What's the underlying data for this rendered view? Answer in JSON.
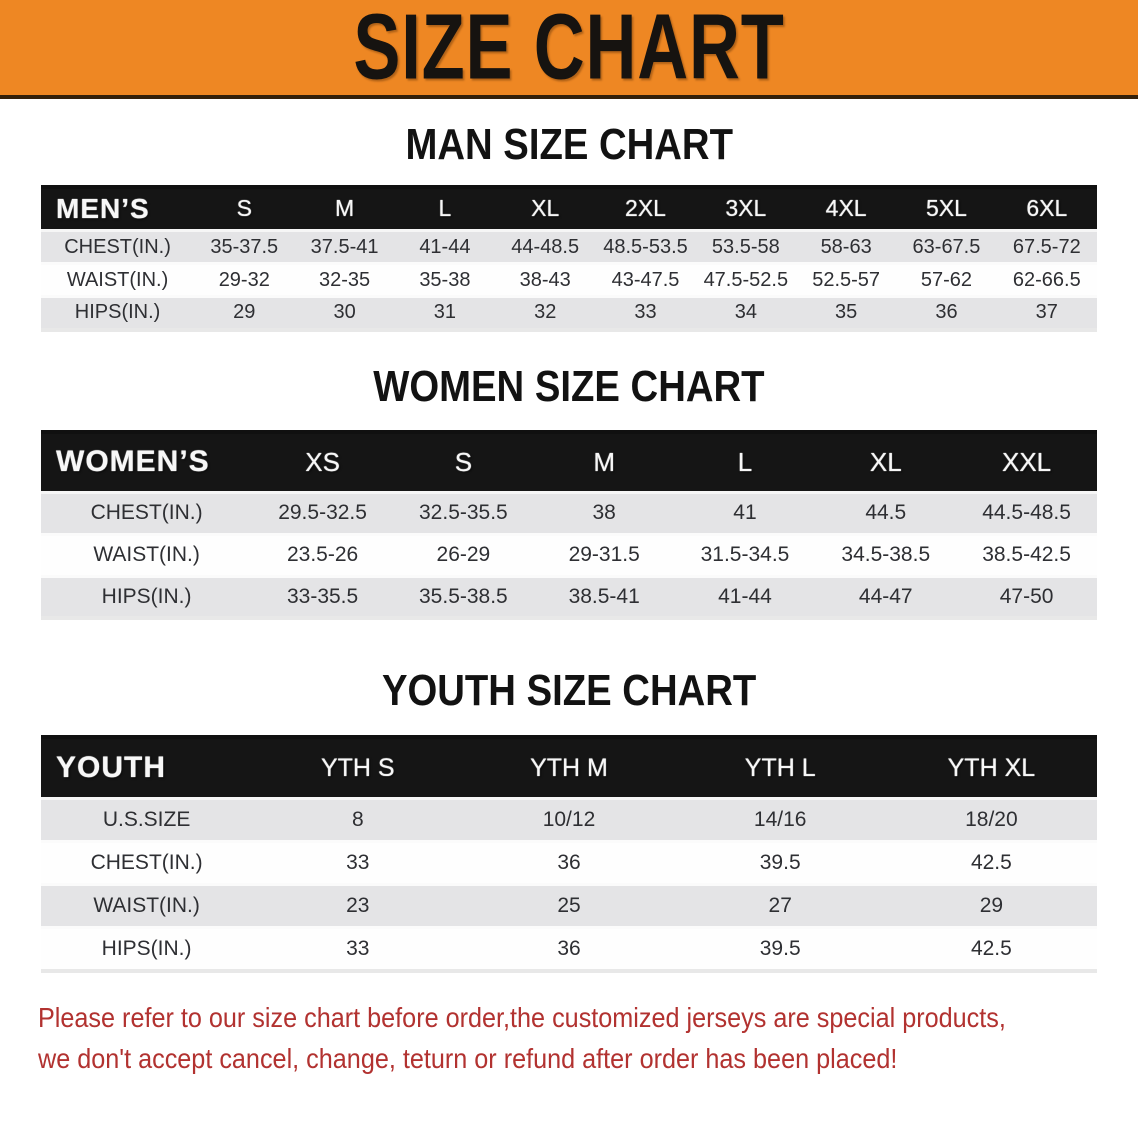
{
  "banner": {
    "title": "SIZE CHART"
  },
  "sections": [
    {
      "heading": "MAN SIZE CHART",
      "table": {
        "header_label": "MEN’S",
        "columns": [
          "S",
          "M",
          "L",
          "XL",
          "2XL",
          "3XL",
          "4XL",
          "5XL",
          "6XL"
        ],
        "rows": [
          {
            "label": "CHEST(IN.)",
            "values": [
              "35-37.5",
              "37.5-41",
              "41-44",
              "44-48.5",
              "48.5-53.5",
              "53.5-58",
              "58-63",
              "63-67.5",
              "67.5-72"
            ]
          },
          {
            "label": "WAIST(IN.)",
            "values": [
              "29-32",
              "32-35",
              "35-38",
              "38-43",
              "43-47.5",
              "47.5-52.5",
              "52.5-57",
              "57-62",
              "62-66.5"
            ]
          },
          {
            "label": "HIPS(IN.)",
            "values": [
              "29",
              "30",
              "31",
              "32",
              "33",
              "34",
              "35",
              "36",
              "37"
            ]
          }
        ]
      }
    },
    {
      "heading": "WOMEN SIZE CHART",
      "table": {
        "header_label": "WOMEN’S",
        "columns": [
          "XS",
          "S",
          "M",
          "L",
          "XL",
          "XXL"
        ],
        "rows": [
          {
            "label": "CHEST(IN.)",
            "values": [
              "29.5-32.5",
              "32.5-35.5",
              "38",
              "41",
              "44.5",
              "44.5-48.5"
            ]
          },
          {
            "label": "WAIST(IN.)",
            "values": [
              "23.5-26",
              "26-29",
              "29-31.5",
              "31.5-34.5",
              "34.5-38.5",
              "38.5-42.5"
            ]
          },
          {
            "label": "HIPS(IN.)",
            "values": [
              "33-35.5",
              "35.5-38.5",
              "38.5-41",
              "41-44",
              "44-47",
              "47-50"
            ]
          }
        ]
      }
    },
    {
      "heading": "YOUTH SIZE CHART",
      "table": {
        "header_label": "YOUTH",
        "columns": [
          "YTH S",
          "YTH M",
          "YTH L",
          "YTH XL"
        ],
        "rows": [
          {
            "label": "U.S.SIZE",
            "values": [
              "8",
              "10/12",
              "14/16",
              "18/20"
            ]
          },
          {
            "label": "CHEST(IN.)",
            "values": [
              "33",
              "36",
              "39.5",
              "42.5"
            ]
          },
          {
            "label": "WAIST(IN.)",
            "values": [
              "23",
              "25",
              "27",
              "29"
            ]
          },
          {
            "label": "HIPS(IN.)",
            "values": [
              "33",
              "36",
              "39.5",
              "42.5"
            ]
          }
        ]
      }
    }
  ],
  "footer": {
    "lines": [
      "Please refer to our size chart before order,the customized jerseys are special products,",
      "we don't accept cancel, change, teturn or refund after order has been placed!"
    ]
  },
  "colors": {
    "banner_orange": "#ee8723",
    "banner_border": "#33200a",
    "header_black": "#151515",
    "row_gray": "#e4e4e6",
    "text_dark": "#2e2f33",
    "disclaimer_red": "#b23230"
  }
}
